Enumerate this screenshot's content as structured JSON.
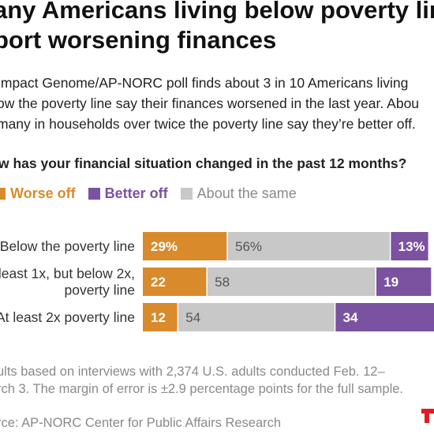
{
  "headline": {
    "line1": "any Americans living below poverty lin",
    "line2": "port worsening finances"
  },
  "subhead": {
    "line1": "Impact Genome/AP-NORC poll finds about 3 in 10 Americans living",
    "line2": "ow the poverty line say their finances worsened in the last year. Abou",
    "line3": "many in households over twice the poverty line say they’re better off."
  },
  "question": "w has your financial situation changed in the past 12 months?",
  "legend": [
    {
      "label": "Worse off",
      "color": "#d98a2b",
      "bold": true
    },
    {
      "label": "Better off",
      "color": "#7b52a0",
      "bold": true
    },
    {
      "label": "About the same",
      "color": "#c8c8c8",
      "bold": false
    }
  ],
  "chart_data": {
    "type": "bar",
    "orientation": "horizontal",
    "stacked": true,
    "categories": [
      [
        "Below the poverty line"
      ],
      [
        "least 1x, but below 2x,",
        "poverty line"
      ],
      [
        "At least 2x poverty line"
      ]
    ],
    "series": [
      {
        "name": "Worse off",
        "color": "#d98a2b",
        "values": [
          29,
          22,
          12
        ],
        "labels": [
          "29%",
          "22",
          "12"
        ],
        "label_color": "#ffffff"
      },
      {
        "name": "About the same",
        "color": "#c8c8c8",
        "values": [
          56,
          58,
          54
        ],
        "labels": [
          "56%",
          "58",
          "54"
        ],
        "label_color": "#555555"
      },
      {
        "name": "Better off",
        "color": "#7b52a0",
        "values": [
          13,
          19,
          34
        ],
        "labels": [
          "13%",
          "19",
          "34"
        ],
        "label_color": "#ffffff"
      }
    ],
    "xlim": [
      0,
      100
    ]
  },
  "footnote": {
    "line1": "ults based on interviews with 2,374 U.S. adults conducted Feb. 12–",
    "line2": "rch 3. The margin of error is ±2.9 percentage points for the full sample."
  },
  "source": "rce: AP-NORC Center for Public Affairs Research",
  "logo_color": "#e01b22"
}
